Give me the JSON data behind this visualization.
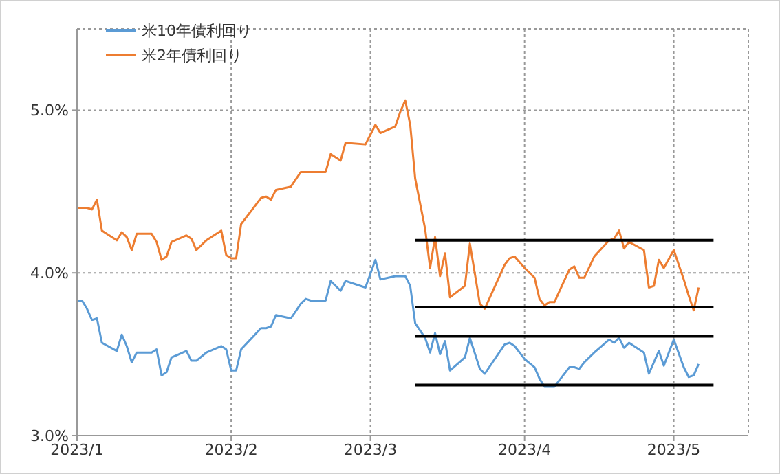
{
  "chart_data": {
    "type": "line",
    "x": [
      "2023-01-01",
      "2023-01-02",
      "2023-01-03",
      "2023-01-04",
      "2023-01-05",
      "2023-01-06",
      "2023-01-09",
      "2023-01-10",
      "2023-01-11",
      "2023-01-12",
      "2023-01-13",
      "2023-01-16",
      "2023-01-17",
      "2023-01-18",
      "2023-01-19",
      "2023-01-20",
      "2023-01-23",
      "2023-01-24",
      "2023-01-25",
      "2023-01-27",
      "2023-01-30",
      "2023-01-31",
      "2023-02-01",
      "2023-02-02",
      "2023-02-03",
      "2023-02-07",
      "2023-02-08",
      "2023-02-09",
      "2023-02-10",
      "2023-02-13",
      "2023-02-15",
      "2023-02-16",
      "2023-02-17",
      "2023-02-20",
      "2023-02-21",
      "2023-02-23",
      "2023-02-24",
      "2023-02-28",
      "2023-03-02",
      "2023-03-03",
      "2023-03-06",
      "2023-03-07",
      "2023-03-08",
      "2023-03-09",
      "2023-03-10",
      "2023-03-12",
      "2023-03-13",
      "2023-03-14",
      "2023-03-15",
      "2023-03-16",
      "2023-03-17",
      "2023-03-20",
      "2023-03-21",
      "2023-03-23",
      "2023-03-24",
      "2023-03-28",
      "2023-03-29",
      "2023-03-30",
      "2023-04-01",
      "2023-04-03",
      "2023-04-04",
      "2023-04-05",
      "2023-04-06",
      "2023-04-07",
      "2023-04-10",
      "2023-04-11",
      "2023-04-12",
      "2023-04-13",
      "2023-04-15",
      "2023-04-18",
      "2023-04-19",
      "2023-04-20",
      "2023-04-21",
      "2023-04-22",
      "2023-04-25",
      "2023-04-26",
      "2023-04-27",
      "2023-04-28",
      "2023-04-29",
      "2023-05-01",
      "2023-05-03",
      "2023-05-04",
      "2023-05-05",
      "2023-05-06"
    ],
    "series": [
      {
        "name": "米10年債利回り",
        "color": "#5b9bd5",
        "values": [
          3.83,
          3.83,
          3.78,
          3.71,
          3.72,
          3.57,
          3.52,
          3.62,
          3.55,
          3.45,
          3.51,
          3.51,
          3.53,
          3.37,
          3.39,
          3.48,
          3.52,
          3.46,
          3.46,
          3.51,
          3.55,
          3.53,
          3.4,
          3.4,
          3.53,
          3.66,
          3.66,
          3.67,
          3.74,
          3.72,
          3.81,
          3.84,
          3.83,
          3.83,
          3.95,
          3.89,
          3.95,
          3.91,
          4.08,
          3.96,
          3.98,
          3.98,
          3.98,
          3.92,
          3.69,
          3.6,
          3.51,
          3.63,
          3.5,
          3.58,
          3.4,
          3.48,
          3.6,
          3.41,
          3.38,
          3.56,
          3.57,
          3.55,
          3.47,
          3.42,
          3.35,
          3.3,
          3.3,
          3.3,
          3.42,
          3.42,
          3.41,
          3.45,
          3.51,
          3.59,
          3.57,
          3.6,
          3.54,
          3.57,
          3.51,
          3.38,
          3.45,
          3.52,
          3.43,
          3.59,
          3.42,
          3.36,
          3.37,
          3.44
        ]
      },
      {
        "name": "米2年債利回り",
        "color": "#ed7d31",
        "values": [
          4.4,
          4.4,
          4.4,
          4.39,
          4.45,
          4.26,
          4.2,
          4.25,
          4.22,
          4.14,
          4.24,
          4.24,
          4.19,
          4.08,
          4.1,
          4.19,
          4.23,
          4.21,
          4.14,
          4.2,
          4.26,
          4.11,
          4.09,
          4.09,
          4.3,
          4.46,
          4.47,
          4.45,
          4.51,
          4.53,
          4.62,
          4.62,
          4.62,
          4.62,
          4.73,
          4.69,
          4.8,
          4.79,
          4.91,
          4.86,
          4.9,
          4.99,
          5.06,
          4.91,
          4.58,
          4.27,
          4.03,
          4.22,
          3.98,
          4.12,
          3.85,
          3.92,
          4.18,
          3.81,
          3.78,
          4.05,
          4.09,
          4.1,
          4.03,
          3.97,
          3.84,
          3.8,
          3.82,
          3.82,
          4.02,
          4.04,
          3.97,
          3.97,
          4.1,
          4.2,
          4.21,
          4.26,
          4.15,
          4.19,
          4.14,
          3.91,
          3.92,
          4.08,
          4.03,
          4.14,
          3.96,
          3.86,
          3.77,
          3.91
        ]
      },
      {
        "type": "line",
        "color": "#000000",
        "x": [
          "2023-03-10",
          "2023-05-09"
        ],
        "values": [
          4.2,
          4.2
        ]
      },
      {
        "type": "line",
        "color": "#000000",
        "x": [
          "2023-03-10",
          "2023-05-09"
        ],
        "values": [
          3.79,
          3.79
        ]
      },
      {
        "type": "line",
        "color": "#000000",
        "x": [
          "2023-03-10",
          "2023-05-09"
        ],
        "values": [
          3.61,
          3.61
        ]
      },
      {
        "type": "line",
        "color": "#000000",
        "x": [
          "2023-03-10",
          "2023-05-09"
        ],
        "values": [
          3.31,
          3.31
        ]
      }
    ],
    "xlim": [
      "2023-01-01",
      "2023-05-16"
    ],
    "xticks": [
      {
        "value": "2023-01-01",
        "label": "2023/1"
      },
      {
        "value": "2023-02-01",
        "label": "2023/2"
      },
      {
        "value": "2023-03-01",
        "label": "2023/3"
      },
      {
        "value": "2023-04-01",
        "label": "2023/4"
      },
      {
        "value": "2023-05-01",
        "label": "2023/5"
      }
    ],
    "ylim": [
      3.0,
      5.5
    ],
    "yticks": [
      {
        "value": 3,
        "label": "3.0%"
      },
      {
        "value": 4,
        "label": "4.0%"
      },
      {
        "value": 5,
        "label": "5.0%"
      }
    ],
    "grid": true,
    "legend": "top left",
    "line_style": "solid"
  }
}
